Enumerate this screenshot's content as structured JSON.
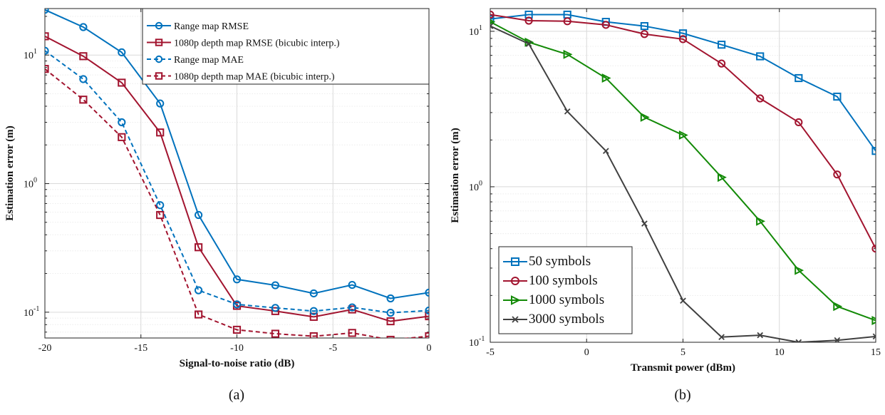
{
  "chart_data": [
    {
      "type": "line",
      "panel_label": "(a)",
      "xlabel": "Signal-to-noise ratio (dB)",
      "ylabel": "Estimation error (m)",
      "xscale": "linear",
      "yscale": "log",
      "xlim": [
        -20,
        0
      ],
      "ylim": [
        0.063,
        23
      ],
      "grid": true,
      "legend_position": "top-right",
      "xticks": [
        "-20",
        "-15",
        "-10",
        "-5",
        "0"
      ],
      "yticks": [
        {
          "base": "10",
          "exp": "-1",
          "value": 0.1
        },
        {
          "base": "10",
          "exp": "0",
          "value": 1
        },
        {
          "base": "10",
          "exp": "1",
          "value": 10
        }
      ],
      "x": [
        -20,
        -18,
        -16,
        -14,
        -12,
        -10,
        -8,
        -6,
        -4,
        -2,
        0
      ],
      "series": [
        {
          "name": "Range map RMSE",
          "color": "#0072BD",
          "marker": "circle",
          "dash": "solid",
          "values": [
            22.5,
            16.5,
            10.5,
            4.2,
            0.57,
            0.18,
            0.162,
            0.14,
            0.163,
            0.128,
            0.142
          ]
        },
        {
          "name": "1080p depth map RMSE (bicubic interp.)",
          "color": "#A2142F",
          "marker": "square",
          "dash": "solid",
          "values": [
            14.0,
            9.8,
            6.1,
            2.5,
            0.32,
            0.112,
            0.102,
            0.092,
            0.105,
            0.085,
            0.093
          ]
        },
        {
          "name": "Range map MAE",
          "color": "#0072BD",
          "marker": "circle",
          "dash": "dashed",
          "values": [
            10.8,
            6.5,
            3.0,
            0.68,
            0.148,
            0.115,
            0.108,
            0.102,
            0.109,
            0.099,
            0.103
          ]
        },
        {
          "name": "1080p depth map MAE (bicubic interp.)",
          "color": "#A2142F",
          "marker": "square",
          "dash": "dashed",
          "values": [
            7.8,
            4.5,
            2.3,
            0.57,
            0.096,
            0.073,
            0.068,
            0.065,
            0.069,
            0.061,
            0.065
          ]
        }
      ]
    },
    {
      "type": "line",
      "panel_label": "(b)",
      "xlabel": "Transmit power (dBm)",
      "ylabel": "Estimation error (m)",
      "xscale": "linear",
      "yscale": "log",
      "xlim": [
        -5,
        15
      ],
      "ylim": [
        0.1,
        14
      ],
      "grid": true,
      "legend_position": "bottom-left",
      "xticks": [
        "-5",
        "0",
        "5",
        "10",
        "15"
      ],
      "yticks": [
        {
          "base": "10",
          "exp": "-1",
          "value": 0.1
        },
        {
          "base": "10",
          "exp": "0",
          "value": 1
        },
        {
          "base": "10",
          "exp": "1",
          "value": 10
        }
      ],
      "x": [
        -5,
        -3,
        -1,
        1,
        3,
        5,
        7,
        9,
        11,
        13,
        15
      ],
      "series": [
        {
          "name": "50 symbols",
          "color": "#0072BD",
          "marker": "square",
          "dash": "solid",
          "values": [
            12.0,
            12.8,
            12.8,
            11.5,
            10.8,
            9.7,
            8.2,
            6.9,
            5.0,
            3.8,
            1.7
          ]
        },
        {
          "name": "100 symbols",
          "color": "#A2142F",
          "marker": "circle",
          "dash": "solid",
          "values": [
            12.8,
            11.7,
            11.6,
            11.0,
            9.6,
            8.9,
            6.2,
            3.7,
            2.6,
            1.2,
            0.4
          ]
        },
        {
          "name": "1000 symbols",
          "color": "#138A07",
          "marker": "triangle-right",
          "dash": "solid",
          "values": [
            11.5,
            8.5,
            7.1,
            5.0,
            2.8,
            2.15,
            1.15,
            0.6,
            0.29,
            0.17,
            0.138
          ]
        },
        {
          "name": "3000 symbols",
          "color": "#404040",
          "marker": "x",
          "dash": "solid",
          "values": [
            10.8,
            8.3,
            3.05,
            1.7,
            0.58,
            0.185,
            0.108,
            0.111,
            0.1,
            0.103,
            0.109
          ]
        }
      ]
    }
  ]
}
